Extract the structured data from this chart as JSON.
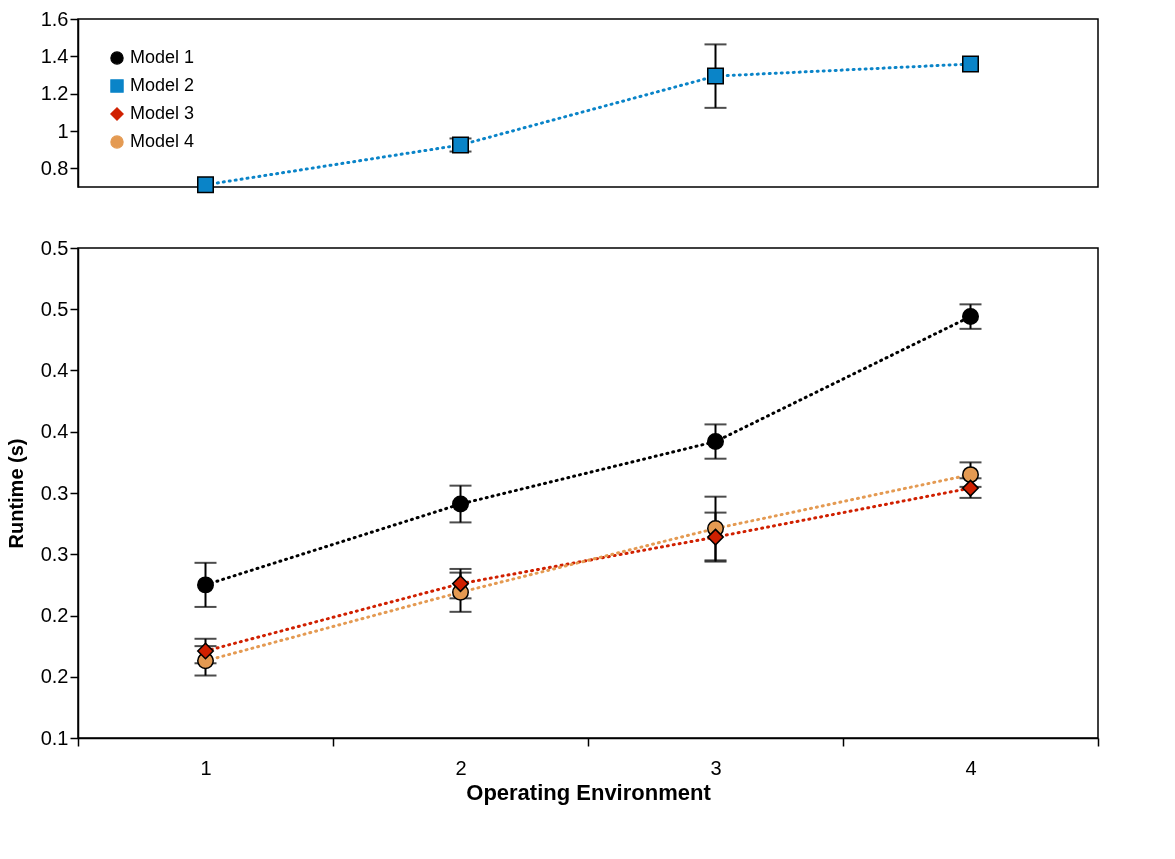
{
  "chart_data": [
    {
      "type": "line",
      "categories": [
        "1",
        "2",
        "3",
        "4"
      ],
      "ylim": [
        0.7,
        1.6
      ],
      "yticks": [
        0.8,
        1,
        1.2,
        1.4,
        1.6
      ],
      "tick_labels": "y",
      "legend": "top left",
      "line_style": "dotted",
      "series": [
        {
          "name": "Model 1",
          "color": "#000000",
          "marker": "circle",
          "values": [
            null,
            null,
            null,
            null
          ]
        },
        {
          "name": "Model 2",
          "color": "#0a84c8",
          "marker": "square",
          "values": [
            0.712,
            0.925,
            1.294,
            1.359
          ],
          "errors": [
            null,
            0.035,
            0.17,
            null
          ]
        },
        {
          "name": "Model 3",
          "color": "#d02000",
          "marker": "diamond",
          "values": [
            null,
            null,
            null,
            null
          ]
        },
        {
          "name": "Model 4",
          "color": "#e49a52",
          "marker": "circle",
          "values": [
            null,
            null,
            null,
            null
          ]
        }
      ]
    },
    {
      "type": "line",
      "categories": [
        "1",
        "2",
        "3",
        "4"
      ],
      "xlabel": "Operating Environment",
      "ylabel": "Runtime (s)",
      "ylim": [
        0.1,
        0.5
      ],
      "yticks": [
        0.1,
        {
          "value": 0.15,
          "label": "0.2"
        },
        0.2,
        {
          "value": 0.25,
          "label": "0.3"
        },
        0.3,
        {
          "value": 0.35,
          "label": "0.4"
        },
        0.4,
        {
          "value": 0.45,
          "label": "0.5"
        },
        0.5
      ],
      "line_style": "dotted",
      "series": [
        {
          "color": "#000000",
          "marker": "circle",
          "values": [
            0.225,
            0.291,
            0.342,
            0.444
          ],
          "errors": [
            0.018,
            0.015,
            0.014,
            0.01
          ]
        },
        {
          "color": "#d02000",
          "marker": "diamond",
          "values": [
            0.171,
            0.226,
            0.264,
            0.304
          ],
          "errors": [
            0.01,
            0.012,
            0.02,
            0.008
          ]
        },
        {
          "color": "#e49a52",
          "marker": "circle",
          "values": [
            0.163,
            0.219,
            0.271,
            0.315
          ],
          "errors": [
            0.012,
            0.016,
            0.026,
            0.01
          ]
        }
      ]
    }
  ]
}
